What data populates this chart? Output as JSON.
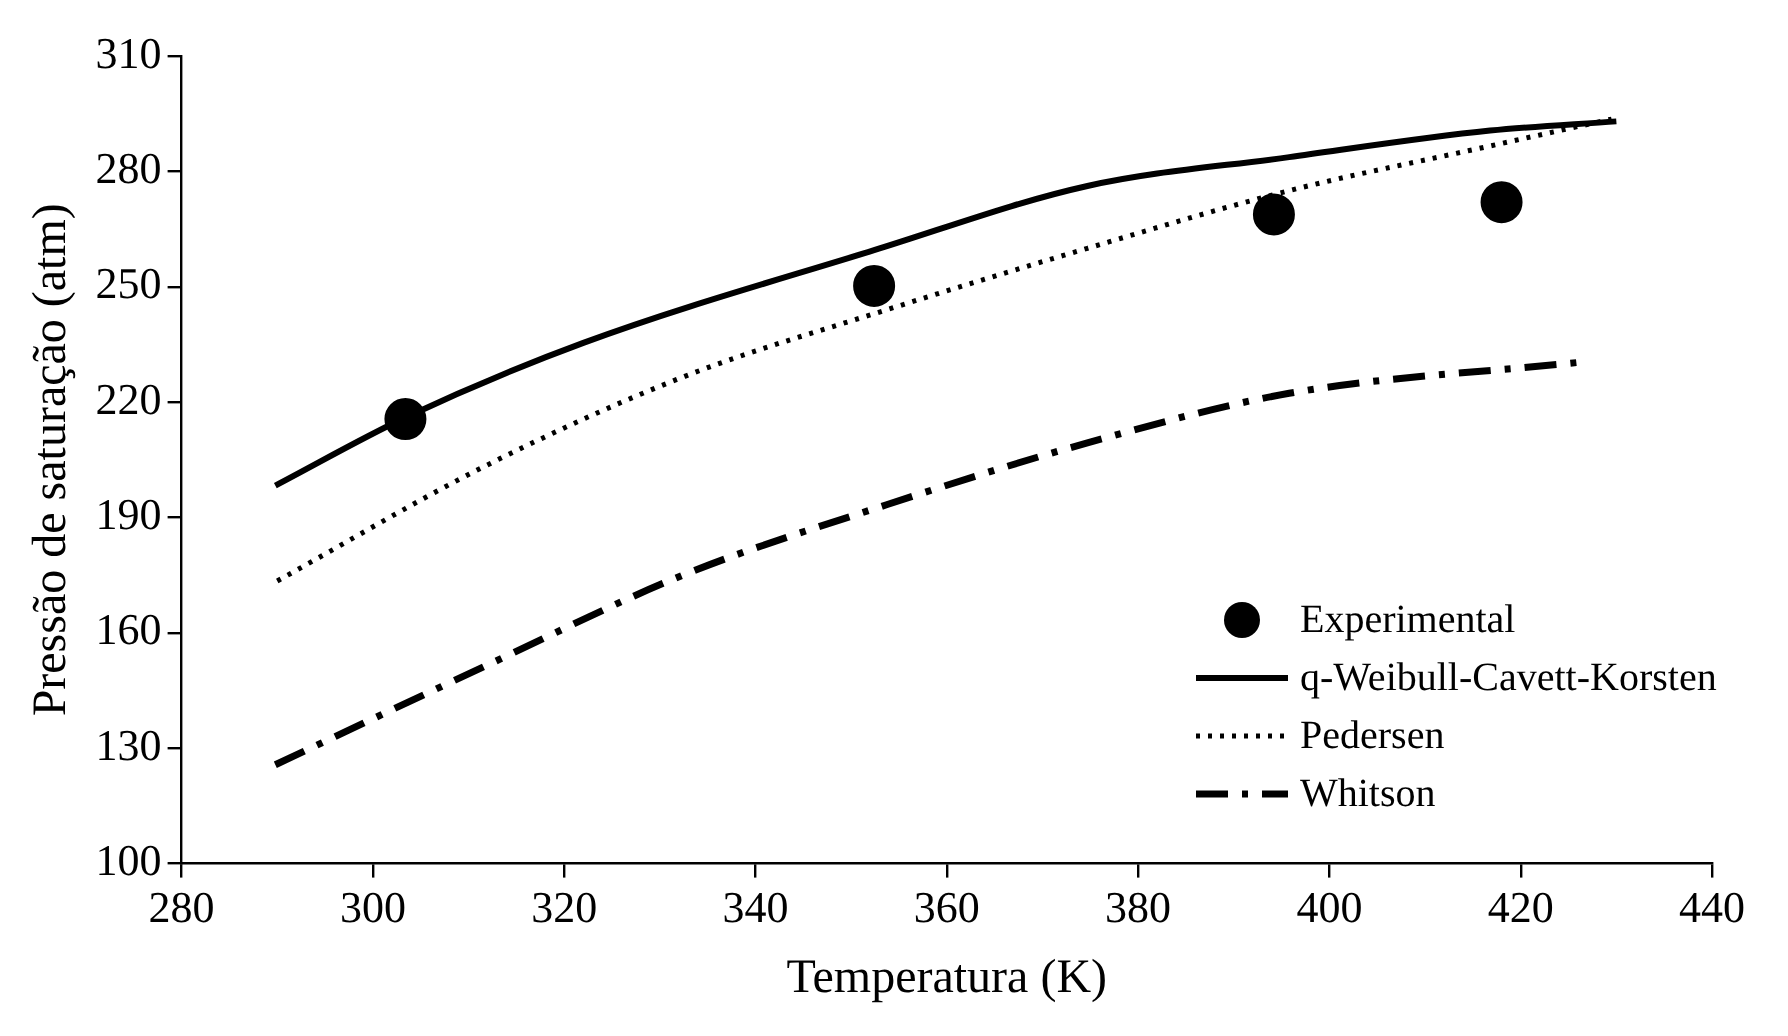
{
  "chart_data": {
    "type": "line",
    "xlabel": "Temperatura (K)",
    "ylabel": "Pressão de saturação (atm)",
    "xlim": [
      280,
      440
    ],
    "xticks": [
      280,
      300,
      320,
      340,
      360,
      380,
      400,
      420,
      440
    ],
    "ylim": [
      100,
      310
    ],
    "yticks": [
      100,
      130,
      160,
      190,
      220,
      250,
      280,
      310
    ],
    "grid": false,
    "legend": "bottom right",
    "series": [
      {
        "name": "Experimental",
        "type": "scatter",
        "marker": "circle",
        "color": "#000000",
        "x": [
          303.4,
          352.4,
          394.2,
          418
        ],
        "values": [
          215.6,
          250.2,
          268.8,
          272
        ]
      },
      {
        "name": "q-Weibull-Cavett-Korsten",
        "line_style": "solid",
        "color": "#000000",
        "x": [
          289.8,
          303.4,
          322,
          352.4,
          374.7,
          395.8,
          416.8,
          430
        ],
        "values": [
          198.3,
          216,
          235.4,
          259.5,
          276.2,
          283.7,
          290.6,
          293
        ]
      },
      {
        "name": "Pedersen",
        "line_style": "dotted",
        "color": "#000000",
        "x": [
          290,
          311.6,
          332.6,
          353.7,
          374.7,
          395.8,
          416.8,
          429.5
        ],
        "values": [
          173.5,
          203.2,
          226.7,
          244,
          260,
          275,
          286.6,
          293.6
        ]
      },
      {
        "name": "Whitson",
        "line_style": "dashdot",
        "color": "#000000",
        "x": [
          289.8,
          311.6,
          332.6,
          353.7,
          374.7,
          395.8,
          426.3
        ],
        "values": [
          125.7,
          151.2,
          175.2,
          193.3,
          209.4,
          222.3,
          230.4
        ]
      }
    ]
  }
}
